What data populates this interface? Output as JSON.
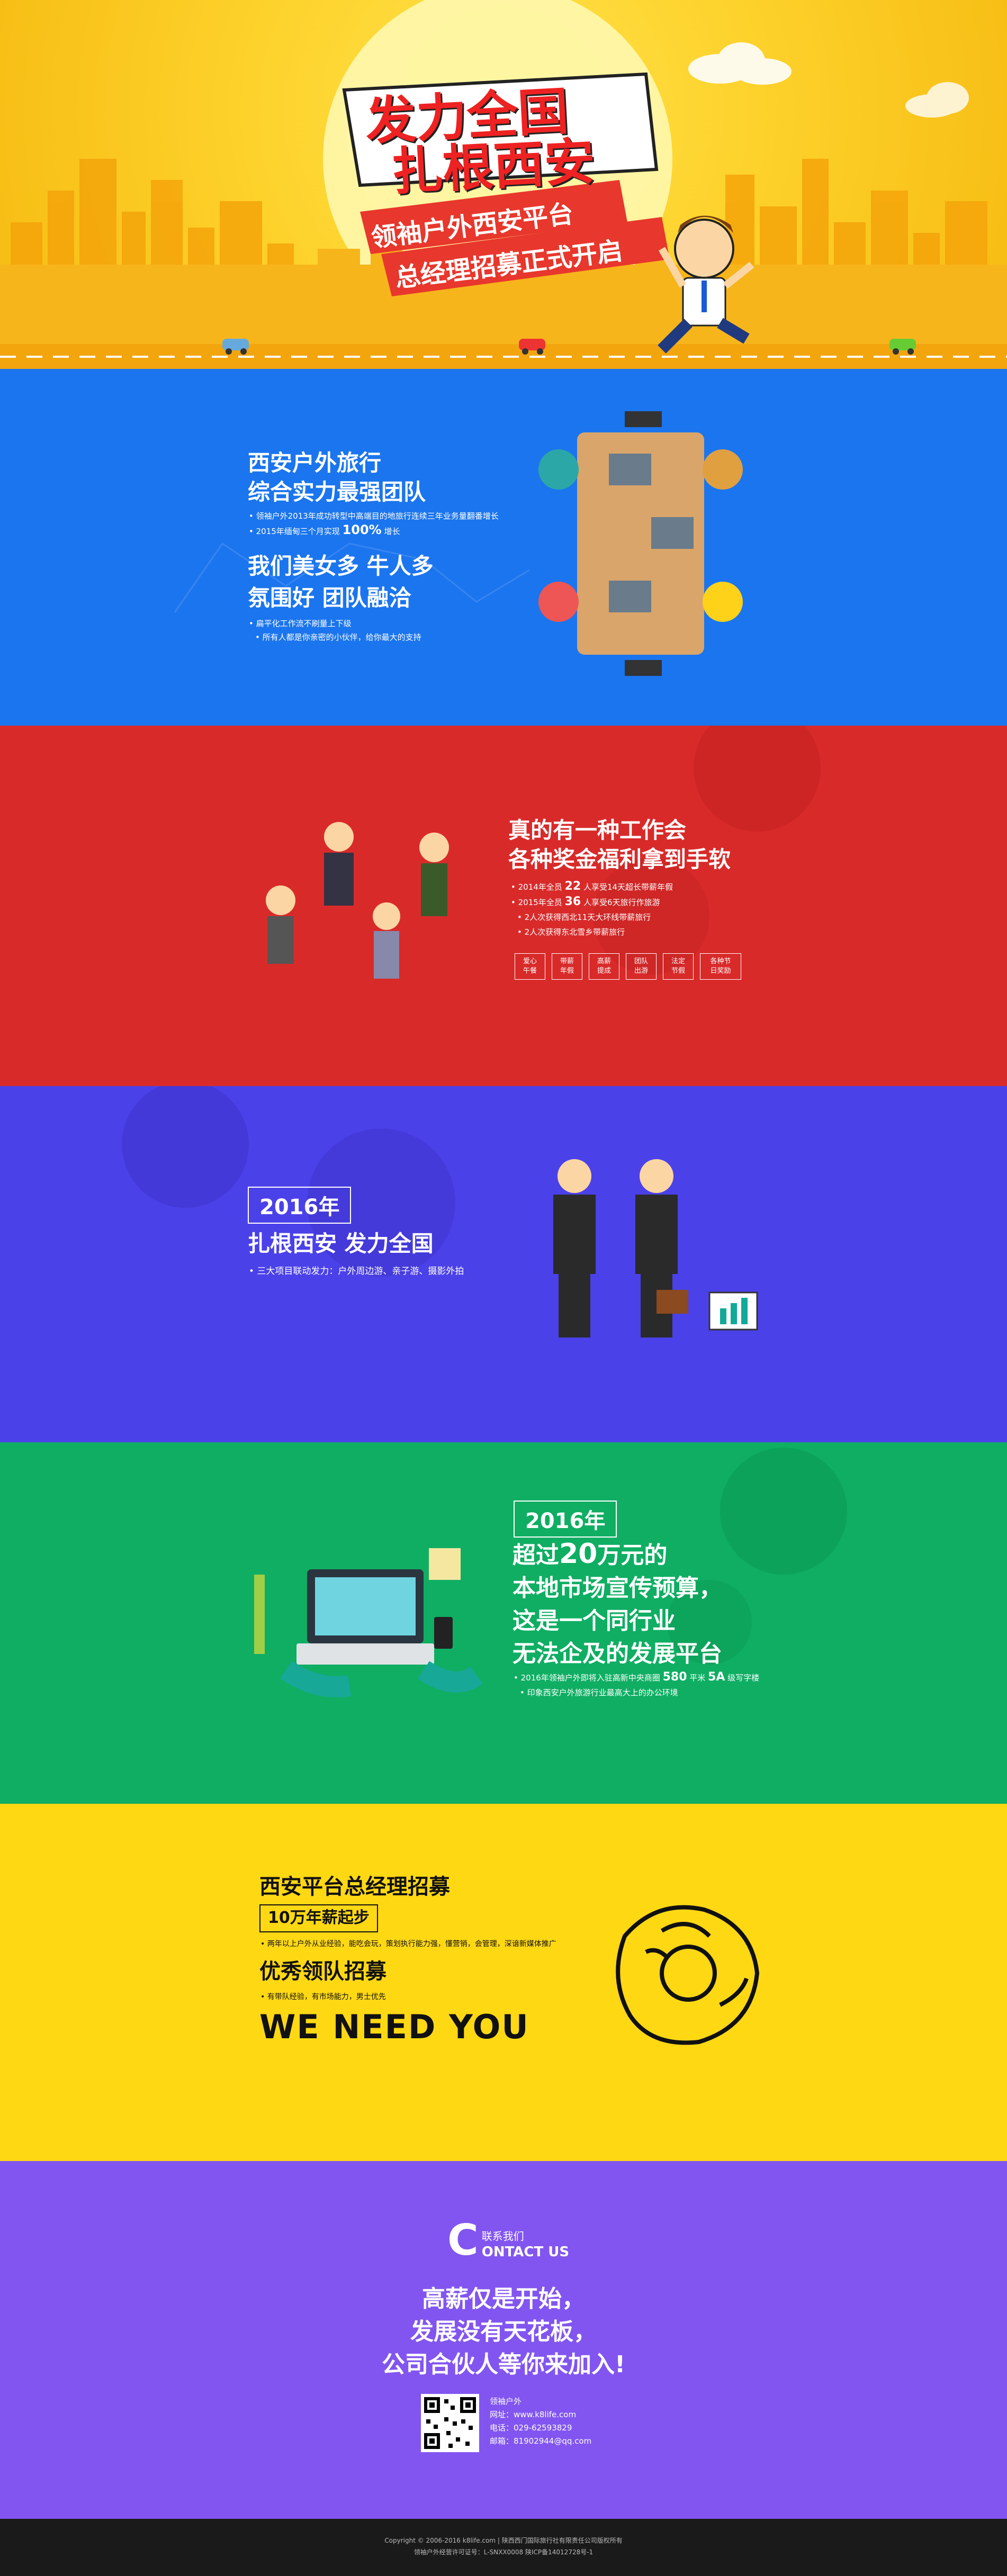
{
  "hero": {
    "title_line1": "发力全国",
    "title_line2": "扎根西安",
    "ribbon1": "领袖户外西安平台",
    "ribbon2": "总经理招募正式开启"
  },
  "sec1": {
    "heading1_line1": "西安户外旅行",
    "heading1_line2": "综合实力最强团队",
    "b1": "领袖户外2013年成功转型中高端目的地旅行连续三年业务量翻番增长",
    "b2_pre": "2015年缅甸三个月实现 ",
    "b2_big": "100%",
    "b2_post": " 增长",
    "heading2_line1": "我们美女多 牛人多",
    "heading2_line2": "氛围好 团队融洽",
    "b3": "扁平化工作流不刷量上下级",
    "b4": "所有人都是你亲密的小伙伴，给你最大的支持"
  },
  "sec2": {
    "heading_line1": "真的有一种工作会",
    "heading_line2": "各种奖金福利拿到手软",
    "b1_pre": "2014年全员 ",
    "b1_big": "22",
    "b1_post": " 人享受14天超长带薪年假",
    "b2_pre": "2015年全员 ",
    "b2_big": "36",
    "b2_post": " 人享受6天旅行作旅游",
    "b3": "2人次获得西北11天大环线带薪旅行",
    "b4": "2人次获得东北雪乡带薪旅行",
    "tags": [
      "爱心\n午餐",
      "带薪\n年假",
      "高薪\n提成",
      "团队\n出游",
      "法定\n节假",
      "各种节\n日奖励"
    ]
  },
  "sec3": {
    "badge": "2016年",
    "heading": "扎根西安 发力全国",
    "b1": "三大项目联动发力：户外周边游、亲子游、摄影外拍"
  },
  "sec4": {
    "badge": "2016年",
    "heading_l1_pre": "超过",
    "heading_l1_big": "20",
    "heading_l1_post": "万元的",
    "heading_l2": "本地市场宣传预算，",
    "heading_l3": "这是一个同行业",
    "heading_l4": "无法企及的发展平台",
    "b1_pre": "2016年领袖户外即将入驻高新中央商圈 ",
    "b1_big1": "580",
    "b1_mid": " 平米 ",
    "b1_big2": "5A",
    "b1_post": " 级写字楼",
    "b2": "印象西安户外旅游行业最高大上的办公环境"
  },
  "sec5": {
    "heading1": "西安平台总经理招募",
    "salary": "10万年薪起步",
    "b1": "两年以上户外从业经验，能吃会玩，策划执行能力强，懂营销，会管理，深谙新媒体推广",
    "heading2": "优秀领队招募",
    "b2": "有带队经验，有市场能力，男士优先",
    "banner": "WE NEED YOU"
  },
  "sec6": {
    "contact_cn": "联系我们",
    "contact_big": "C",
    "contact_en": "ONTACT US",
    "slogan1": "高薪仅是开始，",
    "slogan2": "发展没有天花板，",
    "slogan3": "公司合伙人等你来加入!",
    "info_title": "领袖户外",
    "info_web": "网址：www.k8life.com",
    "info_tel": "电话：029-62593829",
    "info_mail": "邮箱：81902944@qq.com"
  },
  "footer": {
    "line1": "Copyright © 2006-2016 k8life.com | 陕西西门国际旅行社有限责任公司版权所有",
    "line2": "领袖户外经营许可证号：L-SNXX0008 陕ICP备14012728号-1"
  },
  "colors": {
    "hero": "#fdd22b",
    "blue": "#1b75ee",
    "red": "#d92a2a",
    "indigo": "#4b41e9",
    "green": "#0fae63",
    "yellow": "#ffd814",
    "purple": "#8255f0"
  }
}
